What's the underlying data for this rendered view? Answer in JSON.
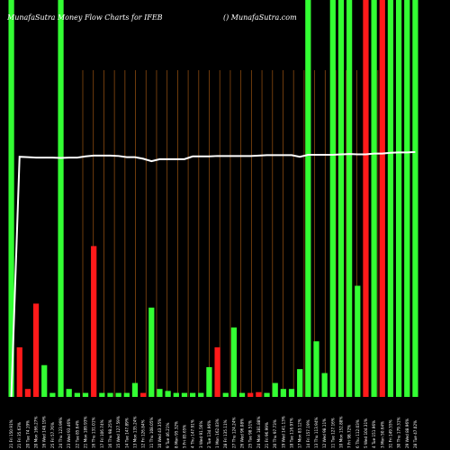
{
  "chart_data": {
    "type": "bar",
    "title": "MunafaSutra  Money Flow  Charts for IFEB",
    "watermark": "() MunafaSutra.com",
    "colors": {
      "background": "#000000",
      "up": "#33ff33",
      "down": "#ff1a1a",
      "grid": "#8a4a10",
      "line": "#ffffff"
    },
    "categories": [
      "21 Fri 150.91%",
      "21 Fri 35.63%",
      "20 Tue 74.19%",
      "20 Mon 166.27%",
      "16 Wed 148.19%",
      "25 Fri 57.76%",
      "24 Thu 123.99%",
      "23 Wed 93.46%",
      "22 Tue 85.64%",
      "21 Mon 189.93%",
      "16 Thu 131.01%",
      "17 Fri 106.74%",
      "16 Thu 98.25%",
      "15 Wed 127.59%",
      "14 Tue 147.89%",
      "13 Mon 135.24%",
      "12 Fri 126.84%",
      "11 Thu 108.05%",
      "10 Wed 43.35%",
      "9 Tue 46.21%",
      "8 Mon 95.32%",
      "5 Fri 85.65%",
      "4 Thu 147.91%",
      "3 Wed 91.56%",
      "2 Tue 134.96%",
      "1 Mon 162.03%",
      "28 Fri 135.11%",
      "27 Thu 124.24%",
      "26 Wed 96.08%",
      "25 Tue 98.51%",
      "24 Mon 181.88%",
      "21 Fri 96.99%",
      "20 Thu 97.73%",
      "19 Wed 141.13%",
      "18 Tue 116.97%",
      "17 Mon 83.12%",
      "14 Fri 157.19%",
      "13 Thu 113.94%",
      "12 Wed 98.11%",
      "11 Tue 127.16%",
      "10 Mon 152.88%",
      "7 Fri 98.72%",
      "6 Thu 112.03%",
      "5 Wed 104.31%",
      "4 Tue 151.96%",
      "3 Mon 50.64%",
      "31 Fri 149.55%",
      "30 Thu 179.31%",
      "29 Wed 88.96%",
      "28 Tue 47.02%"
    ],
    "series": [
      {
        "colors": [
          "up",
          "down",
          "down",
          "down",
          "up",
          "up",
          "up",
          "up",
          "up",
          "up",
          "down",
          "up",
          "up",
          "up",
          "up",
          "up",
          "down",
          "up",
          "up",
          "up",
          "up",
          "up",
          "up",
          "up",
          "up",
          "down",
          "up",
          "up",
          "up",
          "down",
          "down",
          "up",
          "up",
          "up",
          "up",
          "up",
          "up",
          "up",
          "up",
          "up",
          "up",
          "up",
          "up",
          "down",
          "up",
          "down",
          "up",
          "up",
          "up",
          "up"
        ],
        "values": [
          100,
          12.5,
          2,
          23.5,
          8,
          1,
          100,
          2,
          1,
          1,
          38,
          1,
          1,
          1,
          1,
          3.5,
          1,
          22.5,
          2,
          1.5,
          1,
          1,
          1,
          1,
          7.5,
          12.5,
          1,
          17.5,
          1,
          1,
          1.2,
          1,
          3.5,
          2,
          2,
          7,
          100,
          14,
          6,
          100,
          100,
          100,
          28,
          100,
          100,
          100,
          100,
          100,
          100,
          100
        ]
      }
    ],
    "line_values": [
      0,
      60.5,
      60.4,
      60.3,
      60.3,
      60.3,
      60.2,
      60.3,
      60.3,
      60.6,
      60.8,
      60.8,
      60.8,
      60.7,
      60.4,
      60.4,
      60.0,
      59.4,
      59.9,
      59.9,
      59.9,
      59.9,
      60.6,
      60.6,
      60.6,
      60.7,
      60.7,
      60.7,
      60.7,
      60.7,
      60.8,
      60.9,
      60.9,
      60.9,
      60.9,
      60.5,
      61.0,
      61.0,
      61.0,
      61.0,
      61.1,
      61.2,
      61.1,
      61.1,
      61.3,
      61.3,
      61.5,
      61.6,
      61.6,
      61.7
    ],
    "vertical_gridlines": 32,
    "ylim": [
      0,
      100
    ],
    "grid": true
  }
}
